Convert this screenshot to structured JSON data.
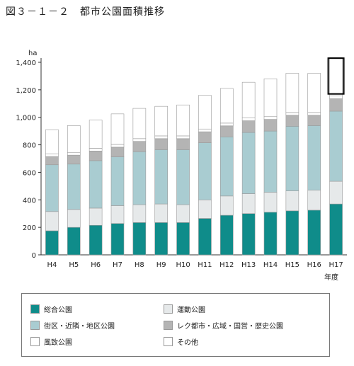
{
  "figure_title": "図３－１－２　都市公園面積推移",
  "chart_data": {
    "type": "bar",
    "stacked": true,
    "title": "",
    "y_unit_label": "ha",
    "x_unit_label": "年度",
    "categories": [
      "H4",
      "H5",
      "H6",
      "H7",
      "H8",
      "H9",
      "H10",
      "H11",
      "H12",
      "H13",
      "H14",
      "H15",
      "H16",
      "H17"
    ],
    "y_ticks": [
      "0",
      "200",
      "400",
      "600",
      "800",
      "1,000",
      "1,200",
      "1,400"
    ],
    "ylim": [
      0,
      1400
    ],
    "series": [
      {
        "name": "総合公園",
        "color": "#0f8c8a",
        "values": [
          175,
          200,
          215,
          228,
          235,
          235,
          235,
          265,
          288,
          300,
          310,
          320,
          325,
          370
        ]
      },
      {
        "name": "運動公園",
        "color": "#e6e9ea",
        "values": [
          140,
          130,
          125,
          130,
          130,
          135,
          130,
          135,
          140,
          145,
          145,
          145,
          145,
          165
        ]
      },
      {
        "name": "街区・近隣・地区公園",
        "color": "#a9ccd1",
        "values": [
          340,
          330,
          345,
          355,
          385,
          395,
          400,
          415,
          430,
          445,
          445,
          470,
          470,
          510
        ]
      },
      {
        "name": "レク都市・広域・国営・歴史公園",
        "color": "#b4b4b4",
        "values": [
          60,
          65,
          70,
          70,
          75,
          80,
          80,
          80,
          80,
          85,
          85,
          80,
          75,
          90
        ]
      },
      {
        "name": "風致公園",
        "color": "#ffffff",
        "values": [
          20,
          20,
          20,
          20,
          20,
          20,
          20,
          20,
          20,
          20,
          20,
          20,
          20,
          20
        ]
      },
      {
        "name": "その他",
        "color": "#ffffff",
        "values": [
          175,
          195,
          205,
          222,
          220,
          215,
          225,
          245,
          252,
          260,
          275,
          285,
          285,
          280
        ]
      }
    ],
    "highlight": {
      "category": "H17",
      "value_range": [
        1170,
        1430
      ],
      "color": "#000000"
    },
    "grid": false,
    "legend_position": "bottom"
  }
}
